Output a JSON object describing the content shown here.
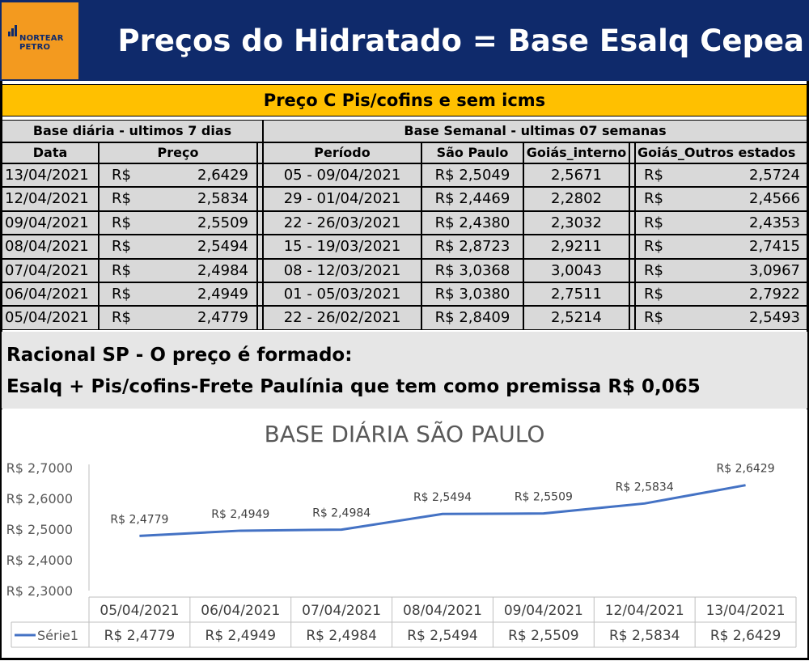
{
  "header": {
    "logo_line1": "NORTEAR",
    "logo_line2": "PETRO",
    "title": "Preços do Hidratado = Base Esalq Cepea"
  },
  "band_title": "Preço C Pis/cofins e sem icms",
  "daily": {
    "section_title": "Base diária - ultimos 7 dias",
    "col_date": "Data",
    "col_price": "Preço",
    "rows": [
      {
        "date": "13/04/2021",
        "cur": "R$",
        "price": "2,6429"
      },
      {
        "date": "12/04/2021",
        "cur": "R$",
        "price": "2,5834"
      },
      {
        "date": "09/04/2021",
        "cur": "R$",
        "price": "2,5509"
      },
      {
        "date": "08/04/2021",
        "cur": "R$",
        "price": "2,5494"
      },
      {
        "date": "07/04/2021",
        "cur": "R$",
        "price": "2,4984"
      },
      {
        "date": "06/04/2021",
        "cur": "R$",
        "price": "2,4949"
      },
      {
        "date": "05/04/2021",
        "cur": "R$",
        "price": "2,4779"
      }
    ]
  },
  "weekly": {
    "section_title": "Base Semanal - ultimas 07 semanas",
    "col_period": "Período",
    "col_sp": "São Paulo",
    "col_goias_int": "Goiás_interno",
    "col_goias_out": "Goiás_Outros estados",
    "rows": [
      {
        "period": "05 - 09/04/2021",
        "sp": "R$ 2,5049",
        "goias_int": "2,5671",
        "cur": "R$",
        "goias_out": "2,5724"
      },
      {
        "period": "29 - 01/04/2021",
        "sp": "R$ 2,4469",
        "goias_int": "2,2802",
        "cur": "R$",
        "goias_out": "2,4566"
      },
      {
        "period": "22 - 26/03/2021",
        "sp": "R$ 2,4380",
        "goias_int": "2,3032",
        "cur": "R$",
        "goias_out": "2,4353"
      },
      {
        "period": "15 - 19/03/2021",
        "sp": "R$ 2,8723",
        "goias_int": "2,9211",
        "cur": "R$",
        "goias_out": "2,7415"
      },
      {
        "period": "08 - 12/03/2021",
        "sp": "R$ 3,0368",
        "goias_int": "3,0043",
        "cur": "R$",
        "goias_out": "3,0967"
      },
      {
        "period": "01 - 05/03/2021",
        "sp": "R$ 3,0380",
        "goias_int": "2,7511",
        "cur": "R$",
        "goias_out": "2,7922"
      },
      {
        "period": "22 - 26/02/2021",
        "sp": "R$ 2,8409",
        "goias_int": "2,5214",
        "cur": "R$",
        "goias_out": "2,5493"
      }
    ]
  },
  "racional": {
    "line1": "Racional SP - O preço é formado:",
    "line2": "Esalq + Pis/cofins-Frete Paulínia que tem como premissa R$ 0,065"
  },
  "colors": {
    "header_bg": "#0f2a6b",
    "logo_bg": "#f39a1f",
    "band_bg": "#ffc000",
    "table_bg": "#d9d9d9",
    "line": "#4472c4"
  },
  "chart_data": {
    "type": "line",
    "title": "BASE DIÁRIA SÃO PAULO",
    "categories": [
      "05/04/2021",
      "06/04/2021",
      "07/04/2021",
      "08/04/2021",
      "09/04/2021",
      "12/04/2021",
      "13/04/2021"
    ],
    "series": [
      {
        "name": "Série1",
        "values": [
          2.4779,
          2.4949,
          2.4984,
          2.5494,
          2.5509,
          2.5834,
          2.6429
        ],
        "labels": [
          "R$ 2,4779",
          "R$ 2,4949",
          "R$ 2,4984",
          "R$ 2,5494",
          "R$ 2,5509",
          "R$ 2,5834",
          "R$ 2,6429"
        ]
      }
    ],
    "ylim": [
      2.3,
      2.7
    ],
    "yticks": [
      "R$ 2,3000",
      "R$ 2,4000",
      "R$ 2,5000",
      "R$ 2,6000",
      "R$ 2,7000"
    ],
    "data_table": true,
    "grid": false
  }
}
